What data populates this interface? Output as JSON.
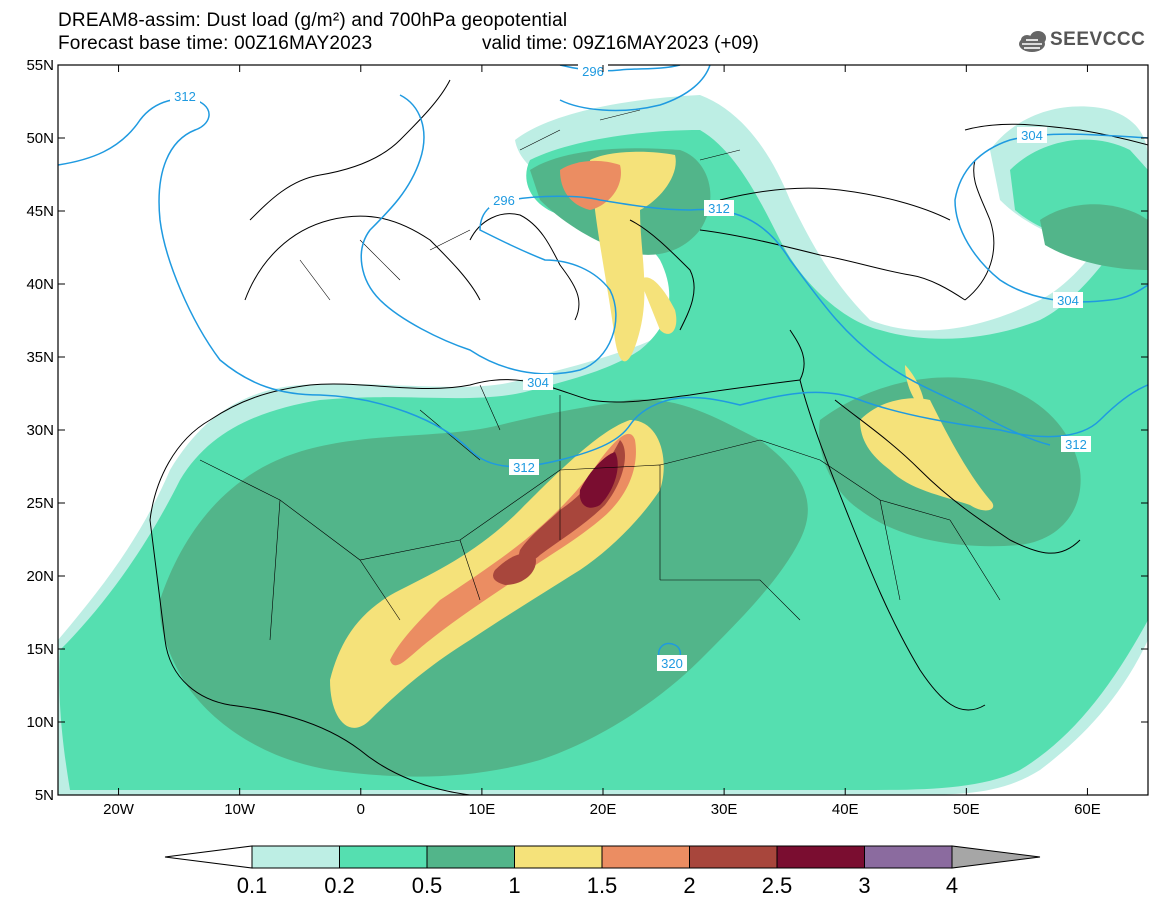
{
  "title": {
    "line1": "DREAM8-assim: Dust load (g/m²) and 700hPa geopotential",
    "line2": "Forecast base time: 00Z16MAY2023",
    "valid": "valid time: 09Z16MAY2023 (+09)"
  },
  "logo": {
    "text": "SEEVCCC",
    "icon": "cloud-icon"
  },
  "map": {
    "lon_range": [
      -25,
      65
    ],
    "lat_range": [
      5,
      55
    ],
    "lat_ticks": [
      "5N",
      "10N",
      "15N",
      "20N",
      "25N",
      "30N",
      "35N",
      "40N",
      "45N",
      "50N",
      "55N"
    ],
    "lon_ticks": [
      "20W",
      "10W",
      "0",
      "10E",
      "20E",
      "30E",
      "40E",
      "50E",
      "60E"
    ],
    "contour_labels": [
      "312",
      "296",
      "296",
      "312",
      "304",
      "304",
      "304",
      "312",
      "312",
      "320"
    ]
  },
  "colorbar": {
    "ticks": [
      "0.1",
      "0.2",
      "0.5",
      "1",
      "1.5",
      "2",
      "2.5",
      "3",
      "4"
    ],
    "colors": [
      "#ffffff",
      "#bdeee4",
      "#55dfb0",
      "#52b58a",
      "#f5e27a",
      "#eb8d62",
      "#a8463c",
      "#7a0d30",
      "#8b6b9f",
      "#a6a6a6"
    ]
  }
}
